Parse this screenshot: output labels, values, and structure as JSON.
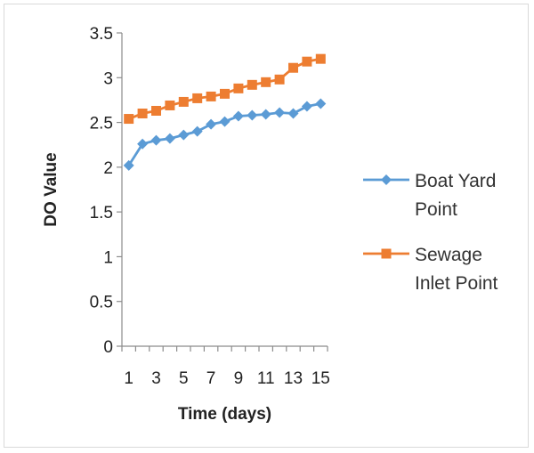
{
  "chart_data": {
    "type": "line",
    "title": "",
    "xlabel": "Time (days)",
    "ylabel": "DO Value",
    "x": [
      1,
      2,
      3,
      4,
      5,
      6,
      7,
      8,
      9,
      10,
      11,
      12,
      13,
      14,
      15
    ],
    "x_tick_labels": [
      "1",
      "3",
      "5",
      "7",
      "9",
      "11",
      "13",
      "15"
    ],
    "x_tick_values": [
      1,
      3,
      5,
      7,
      9,
      11,
      13,
      15
    ],
    "ylim": [
      0,
      3.5
    ],
    "y_ticks": [
      0,
      0.5,
      1,
      1.5,
      2,
      2.5,
      3,
      3.5
    ],
    "y_tick_labels": [
      "0",
      "0.5",
      "1",
      "1.5",
      "2",
      "2.5",
      "3",
      "3.5"
    ],
    "grid": false,
    "legend_position": "right",
    "series": [
      {
        "name_lines": [
          "Boat Yard",
          "Point"
        ],
        "color": "#5b9bd5",
        "marker": "diamond",
        "values": [
          2.02,
          2.26,
          2.3,
          2.32,
          2.36,
          2.4,
          2.48,
          2.51,
          2.57,
          2.58,
          2.59,
          2.61,
          2.6,
          2.68,
          2.71
        ]
      },
      {
        "name_lines": [
          "Sewage",
          "Inlet Point"
        ],
        "color": "#ed7d31",
        "marker": "square",
        "values": [
          2.54,
          2.6,
          2.63,
          2.69,
          2.73,
          2.77,
          2.79,
          2.82,
          2.88,
          2.92,
          2.95,
          2.98,
          3.11,
          3.18,
          3.21
        ]
      }
    ]
  }
}
